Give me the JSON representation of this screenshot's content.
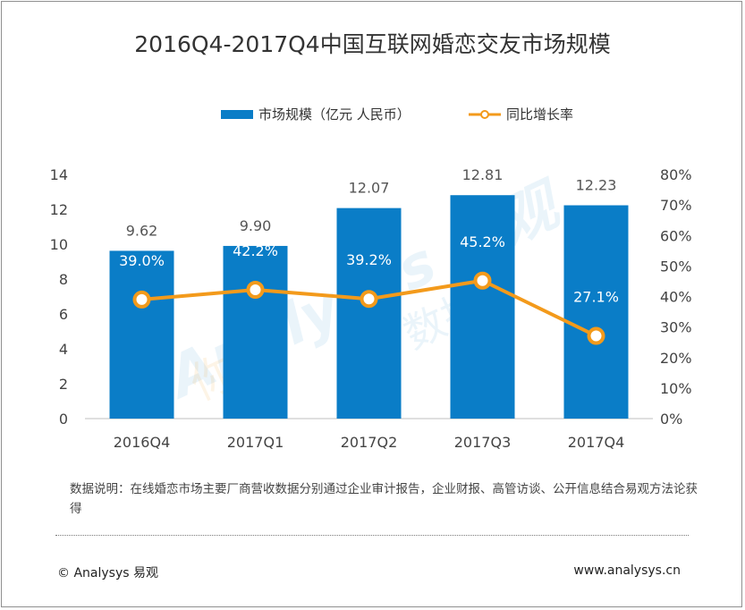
{
  "chart_data": {
    "type": "bar",
    "title": "2016Q4-2017Q4中国互联网婚恋交友市场规模",
    "categories": [
      "2016Q4",
      "2017Q1",
      "2017Q2",
      "2017Q3",
      "2017Q4"
    ],
    "series": [
      {
        "name": "市场规模（亿元 人民币）",
        "type": "bar",
        "axis": "left",
        "color": "#0a7dc7",
        "values": [
          9.62,
          9.9,
          12.07,
          12.81,
          12.23
        ],
        "labels": [
          "9.62",
          "9.90",
          "12.07",
          "12.81",
          "12.23"
        ]
      },
      {
        "name": "同比增长率",
        "type": "line",
        "axis": "right",
        "color": "#f39a1b",
        "values": [
          39.0,
          42.2,
          39.2,
          45.2,
          27.1
        ],
        "labels": [
          "39.0%",
          "42.2%",
          "39.2%",
          "45.2%",
          "27.1%"
        ]
      }
    ],
    "y_left": {
      "min": 0,
      "max": 14,
      "ticks": [
        "0",
        "2",
        "4",
        "6",
        "8",
        "10",
        "12",
        "14"
      ]
    },
    "y_right": {
      "min": 0,
      "max": 80,
      "ticks": [
        "0%",
        "10%",
        "20%",
        "30%",
        "40%",
        "50%",
        "60%",
        "70%",
        "80%"
      ]
    },
    "legend_position": "top-right",
    "grid": false
  },
  "note": "数据说明：在线婚恋市场主要厂商营收数据分别通过企业审计报告，企业财报、高管访谈、公开信息结合易观方法论获得",
  "footer": {
    "left": "© Analysys 易观",
    "right": "www.analysys.cn"
  },
  "watermark": [
    "Analysys 易观",
    "你要",
    "数据",
    "分析"
  ]
}
